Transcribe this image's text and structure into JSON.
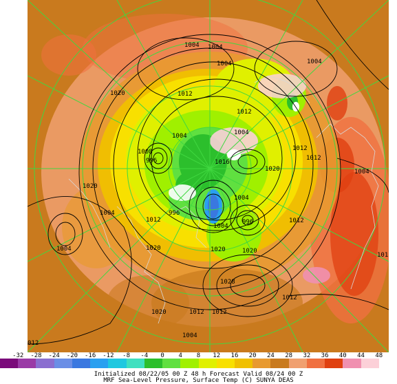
{
  "colorbar": {
    "ticks": [
      "-32",
      "-28",
      "-24",
      "-20",
      "-16",
      "-12",
      "-8",
      "-4",
      "0",
      "4",
      "8",
      "12",
      "16",
      "20",
      "24",
      "28",
      "32",
      "36",
      "40",
      "44",
      "48"
    ],
    "colors": [
      "#7a0a7a",
      "#9a3aa6",
      "#8a6ed0",
      "#6a8ee6",
      "#3a78e0",
      "#2aa0f0",
      "#20c8e0",
      "#40e0c0",
      "#2cbf2c",
      "#60e040",
      "#a0f000",
      "#e0f000",
      "#f8e000",
      "#f0c000",
      "#e89a30",
      "#c97a1e",
      "#f0a070",
      "#f07040",
      "#e04010",
      "#f090b0",
      "#fcd0d8",
      "#ffffff"
    ]
  },
  "caption": {
    "line1": "Initialized 08/22/05 00 Z   48 h Forecast Valid 08/24 00 Z",
    "line2": "MRF Sea-Level Pressure, Surface Temp (C)     SUNYA DEAS"
  },
  "map": {
    "isobar_labels": [
      "1004",
      "1004",
      "1004",
      "1004",
      "1020",
      "1012",
      "1012",
      "1004",
      "1004",
      "1012",
      "1012",
      "1004",
      "1008",
      "996",
      "1016",
      "1004",
      "1020",
      "1020",
      "1004",
      "1012",
      "996",
      "1004",
      "996",
      "1012",
      "1020",
      "1020",
      "1004",
      "1028",
      "1020",
      "1012",
      "1012",
      "1012",
      "1020",
      "1004"
    ],
    "partial_label_left": "012",
    "partial_label_right": "101"
  }
}
